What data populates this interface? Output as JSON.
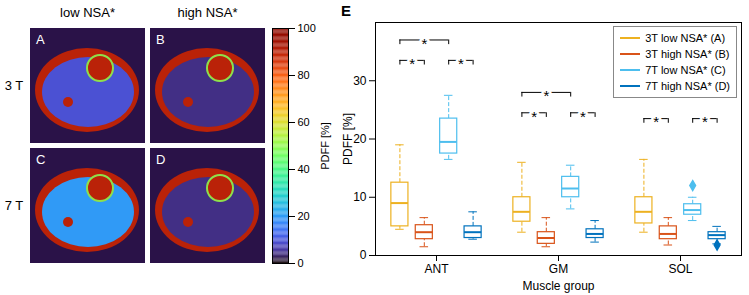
{
  "chart_data": {
    "type": "box",
    "title": "E",
    "x_label": "Muscle group",
    "y_label": "PDFF [%]",
    "categories": [
      "ANT",
      "GM",
      "SOL"
    ],
    "ylim": [
      0,
      40
    ],
    "yticks": [
      0,
      10,
      20,
      30
    ],
    "grid": false,
    "legend": "upper right",
    "marker": "diamond",
    "series": [
      {
        "name": "3T low NSA* (A)",
        "color": "#EDB120",
        "min": [
          4.5,
          4,
          4
        ],
        "q1": [
          5,
          5.8,
          5.5
        ],
        "median": [
          9,
          7.5,
          7.5
        ],
        "q3": [
          12.5,
          10,
          10
        ],
        "max": [
          19,
          16,
          16.5
        ],
        "outliers": [
          [],
          [],
          []
        ]
      },
      {
        "name": "3T high NSA* (B)",
        "color": "#D95319",
        "min": [
          1.5,
          1.5,
          1.8
        ],
        "q1": [
          2.8,
          2,
          2.8
        ],
        "median": [
          4,
          3,
          3.7
        ],
        "q3": [
          5.2,
          4,
          5
        ],
        "max": [
          6.5,
          6.5,
          6.5
        ],
        "outliers": [
          [],
          [],
          []
        ]
      },
      {
        "name": "7T low NSA* (C)",
        "color": "#4DBEEE",
        "min": [
          16.5,
          8,
          6
        ],
        "q1": [
          17.5,
          10,
          7
        ],
        "median": [
          19.5,
          11.5,
          7.8
        ],
        "q3": [
          23.5,
          13.5,
          8.8
        ],
        "max": [
          27.5,
          15.5,
          10
        ],
        "outliers": [
          [],
          [],
          [
            12
          ]
        ]
      },
      {
        "name": "7T high NSA* (D)",
        "color": "#0072BD",
        "min": [
          2.8,
          2.3,
          2
        ],
        "q1": [
          3,
          3,
          2.8
        ],
        "median": [
          4,
          3.7,
          3.5
        ],
        "q3": [
          5,
          4.5,
          4
        ],
        "max": [
          7.5,
          6,
          5
        ],
        "outliers": [
          [],
          [],
          [
            1.8
          ]
        ]
      }
    ],
    "annotations": [
      {
        "text": "*",
        "category": "ANT",
        "from": "3T low NSA* (A)",
        "to": "7T low NSA* (C)",
        "y": 37
      },
      {
        "text": "*",
        "category": "ANT",
        "from": "3T low NSA* (A)",
        "to": "3T high NSA* (B)",
        "y": 33.5
      },
      {
        "text": "*",
        "category": "ANT",
        "from": "7T low NSA* (C)",
        "to": "7T high NSA* (D)",
        "y": 33.5
      },
      {
        "text": "*",
        "category": "GM",
        "from": "3T low NSA* (A)",
        "to": "7T low NSA* (C)",
        "y": 28
      },
      {
        "text": "*",
        "category": "GM",
        "from": "3T low NSA* (A)",
        "to": "3T high NSA* (B)",
        "y": 24.5
      },
      {
        "text": "*",
        "category": "GM",
        "from": "7T low NSA* (C)",
        "to": "7T high NSA* (D)",
        "y": 24.5
      },
      {
        "text": "*",
        "category": "SOL",
        "from": "3T low NSA* (A)",
        "to": "3T high NSA* (B)",
        "y": 23.5
      },
      {
        "text": "*",
        "category": "SOL",
        "from": "7T low NSA* (C)",
        "to": "7T high NSA* (D)",
        "y": 23.5
      }
    ]
  },
  "image_panels": {
    "columns": [
      "low NSA*",
      "high NSA*"
    ],
    "rows": [
      "3 T",
      "7 T"
    ],
    "labels": [
      [
        "A",
        "B"
      ],
      [
        "C",
        "D"
      ]
    ],
    "colorbar": {
      "label": "PDFF [%]",
      "range": [
        0,
        100
      ],
      "ticks": [
        0,
        20,
        40,
        60,
        80,
        100
      ]
    }
  }
}
